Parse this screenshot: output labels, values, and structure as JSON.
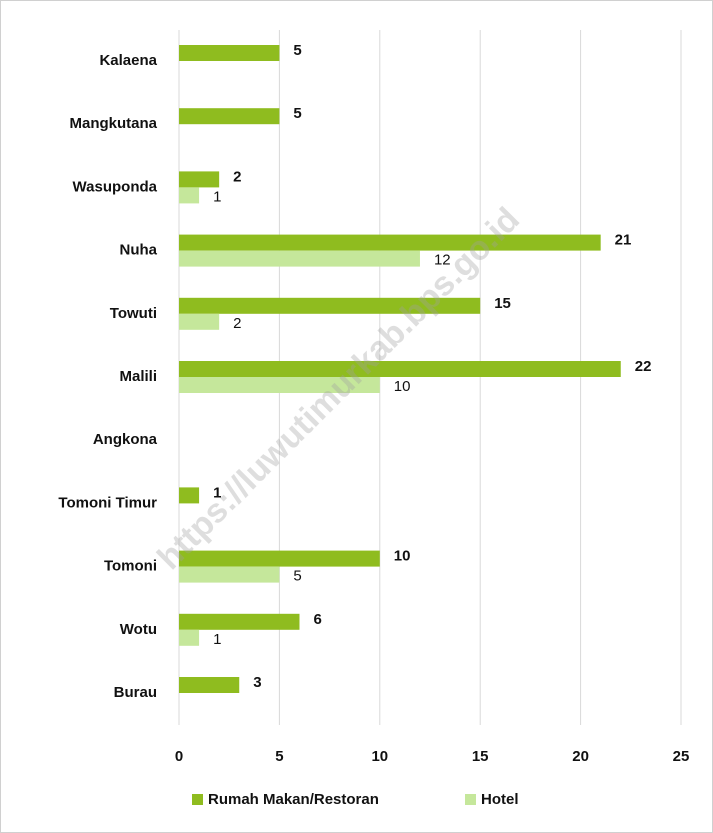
{
  "chart_data": {
    "type": "bar",
    "orientation": "horizontal",
    "categories": [
      "Kalaena",
      "Mangkutana",
      "Wasuponda",
      "Nuha",
      "Towuti",
      "Malili",
      "Angkona",
      "Tomoni Timur",
      "Tomoni",
      "Wotu",
      "Burau"
    ],
    "series": [
      {
        "name": "Rumah Makan/Restoran",
        "color": "#8fbc1f",
        "values": [
          5,
          5,
          2,
          21,
          15,
          22,
          null,
          1,
          10,
          6,
          3
        ]
      },
      {
        "name": "Hotel",
        "color": "#c5e79b",
        "values": [
          null,
          null,
          1,
          12,
          2,
          10,
          null,
          null,
          5,
          1,
          null
        ]
      }
    ],
    "xlim": [
      0,
      25
    ],
    "xticks": [
      0,
      5,
      10,
      15,
      20,
      25
    ],
    "grid": true,
    "legend": "bottom",
    "watermark": "https://luwutimurkab.bps.go.id"
  }
}
